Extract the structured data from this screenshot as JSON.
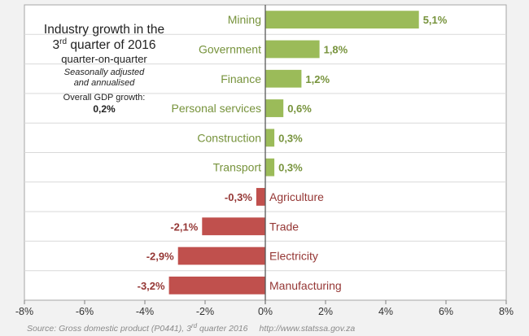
{
  "chart_data": {
    "type": "bar",
    "orientation": "horizontal",
    "categories": [
      "Mining",
      "Government",
      "Finance",
      "Personal services",
      "Construction",
      "Transport",
      "Agriculture",
      "Trade",
      "Electricity",
      "Manufacturing"
    ],
    "values": [
      5.1,
      1.8,
      1.2,
      0.6,
      0.3,
      0.3,
      -0.3,
      -2.1,
      -2.9,
      -3.2
    ],
    "value_labels": [
      "5,1%",
      "1,8%",
      "1,2%",
      "0,6%",
      "0,3%",
      "0,3%",
      "-0,3%",
      "-2,1%",
      "-2,9%",
      "-3,2%"
    ],
    "xlim": [
      -8,
      8
    ],
    "xticks": [
      -8,
      -6,
      -4,
      -2,
      0,
      2,
      4,
      6,
      8
    ],
    "xtick_labels": [
      "-8%",
      "-6%",
      "-4%",
      "-2%",
      "0%",
      "2%",
      "4%",
      "6%",
      "8%"
    ],
    "grid": "horizontal separators",
    "title": {
      "line1": "Industry growth in the",
      "line2_pre": "3",
      "line2_sup": "rd",
      "line2_post": " quarter of 2016",
      "line3": "quarter-on-quarter",
      "line4": "Seasonally adjusted",
      "line5": "and annualised"
    },
    "annotation": {
      "label": "Overall GDP growth:",
      "value": "0,2%"
    },
    "colors": {
      "positive": "#9bbb59",
      "negative": "#c0504d",
      "positive_text": "#77933c",
      "negative_text": "#953735"
    }
  },
  "footer": {
    "source_pre": "Source: Gross domestic product (P0441), 3",
    "source_sup": "rd",
    "source_post": " quarter 2016",
    "url": "http://www.statssa.gov.za"
  }
}
